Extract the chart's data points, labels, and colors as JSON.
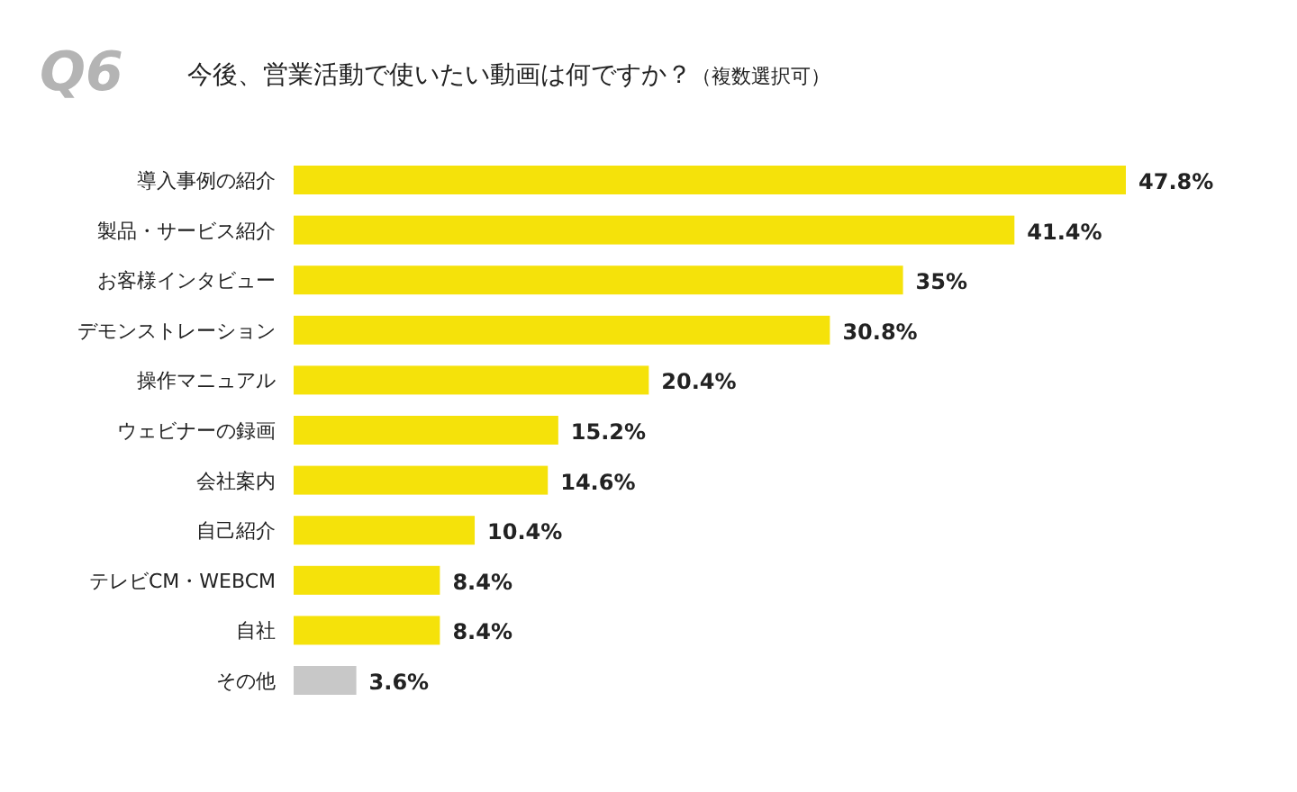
{
  "chart_data": {
    "type": "bar",
    "orientation": "horizontal",
    "title": "今後、営業活動で使いたい動画は何ですか？",
    "subtitle": "（複数選択可）",
    "annotations": [
      "Q6"
    ],
    "categories": [
      "導入事例の紹介",
      "製品・サービス紹介",
      "お客様インタビュー",
      "デモンストレーション",
      "操作マニュアル",
      "ウェビナーの録画",
      "会社案内",
      "自己紹介",
      "テレビCM・WEBCM",
      "自社",
      "その他"
    ],
    "values": [
      47.8,
      41.4,
      35,
      30.8,
      20.4,
      15.2,
      14.6,
      10.4,
      8.4,
      8.4,
      3.6
    ],
    "value_labels": [
      "47.8%",
      "41.4%",
      "35%",
      "30.8%",
      "20.4%",
      "15.2%",
      "14.6%",
      "10.4%",
      "8.4%",
      "8.4%",
      "3.6%"
    ],
    "colors": [
      "#f5e20a",
      "#f5e20a",
      "#f5e20a",
      "#f5e20a",
      "#f5e20a",
      "#f5e20a",
      "#f5e20a",
      "#f5e20a",
      "#f5e20a",
      "#f5e20a",
      "#c8c8c8"
    ]
  }
}
